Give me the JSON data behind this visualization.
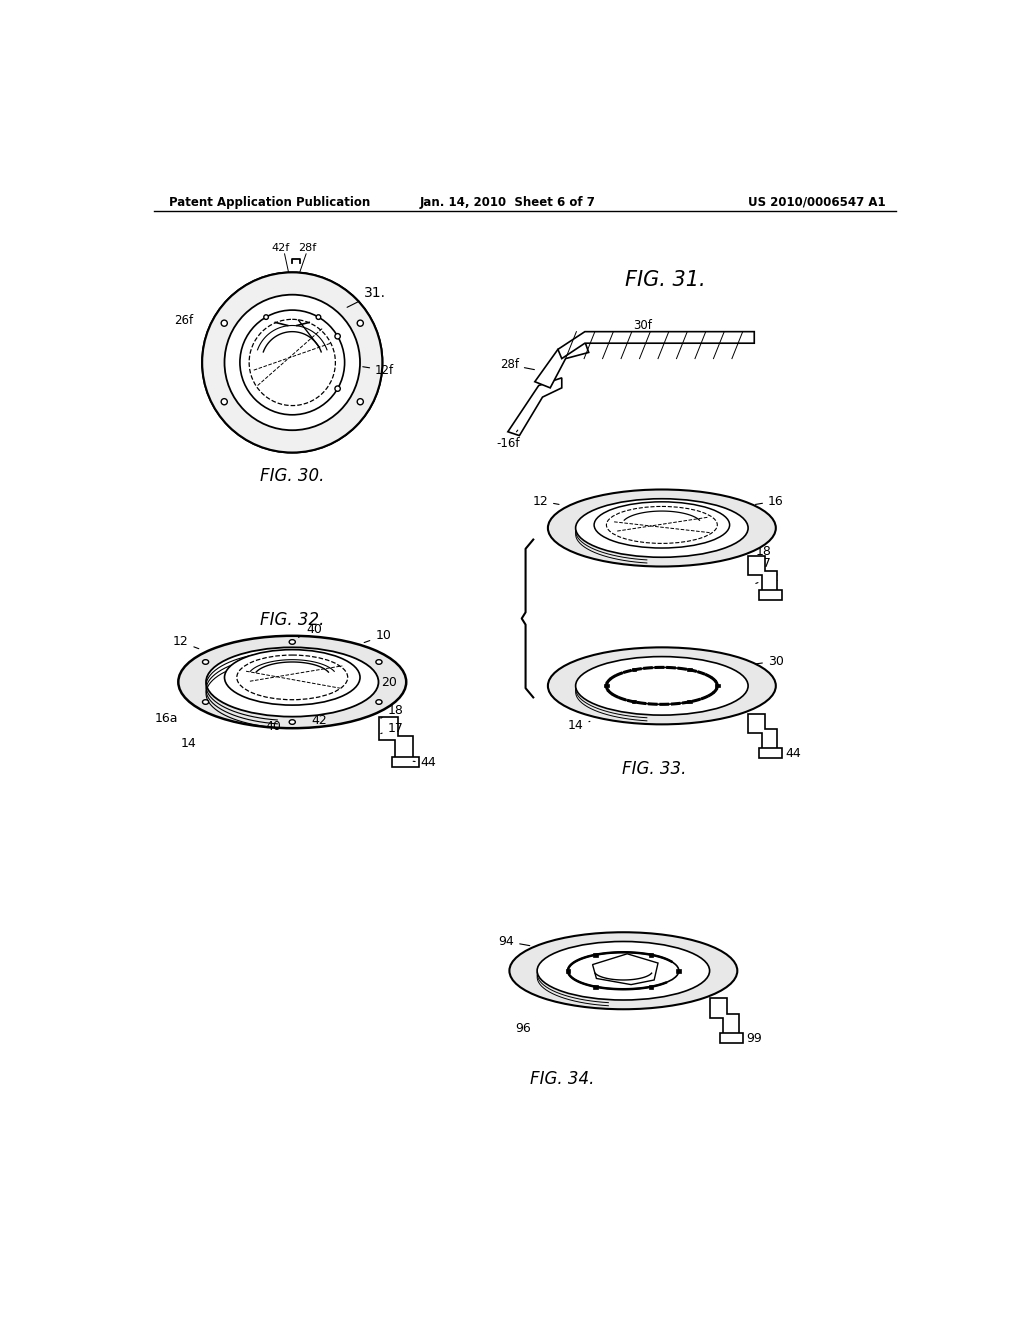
{
  "background_color": "#ffffff",
  "header_left": "Patent Application Publication",
  "header_center": "Jan. 14, 2010  Sheet 6 of 7",
  "header_right": "US 2010/0006547 A1",
  "fig30_label": "FIG. 30.",
  "fig31_label": "FIG. 31.",
  "fig32_label": "FIG. 32.",
  "fig33_label": "FIG. 33.",
  "fig34_label": "FIG. 34."
}
